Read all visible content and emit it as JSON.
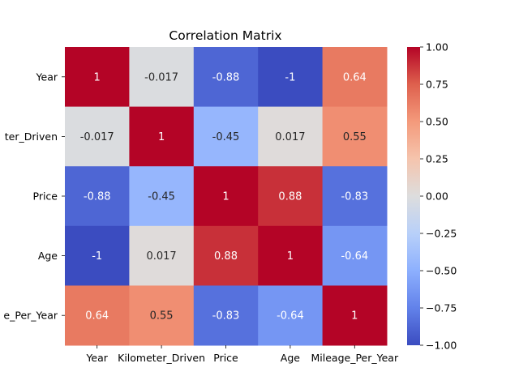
{
  "chart_data": {
    "type": "heatmap",
    "title": "Correlation Matrix",
    "x_categories": [
      "Year",
      "Kilometer_Driven",
      "Price",
      "Age",
      "Mileage_Per_Year"
    ],
    "y_categories": [
      "Year",
      "ter_Driven",
      "Price",
      "Age",
      "e_Per_Year"
    ],
    "values": [
      [
        1,
        -0.017,
        -0.88,
        -1,
        0.64
      ],
      [
        -0.017,
        1,
        -0.45,
        0.017,
        0.55
      ],
      [
        -0.88,
        -0.45,
        1,
        0.88,
        -0.83
      ],
      [
        -1,
        0.017,
        0.88,
        1,
        -0.64
      ],
      [
        0.64,
        0.55,
        -0.83,
        -0.64,
        1
      ]
    ],
    "cell_labels": [
      [
        "1",
        "-0.017",
        "-0.88",
        "-1",
        "0.64"
      ],
      [
        "-0.017",
        "1",
        "-0.45",
        "0.017",
        "0.55"
      ],
      [
        "-0.88",
        "-0.45",
        "1",
        "0.88",
        "-0.83"
      ],
      [
        "-1",
        "0.017",
        "0.88",
        "1",
        "-0.64"
      ],
      [
        "0.64",
        "0.55",
        "-0.83",
        "-0.64",
        "1"
      ]
    ],
    "colormap": "coolwarm",
    "vmin": -1.0,
    "vmax": 1.0,
    "colorbar_ticks": [
      "1.00",
      "0.75",
      "0.50",
      "0.25",
      "0.00",
      "−0.25",
      "−0.50",
      "−0.75",
      "−1.00"
    ],
    "colorbar_tick_values": [
      1.0,
      0.75,
      0.5,
      0.25,
      0.0,
      -0.25,
      -0.5,
      -0.75,
      -1.0
    ]
  }
}
